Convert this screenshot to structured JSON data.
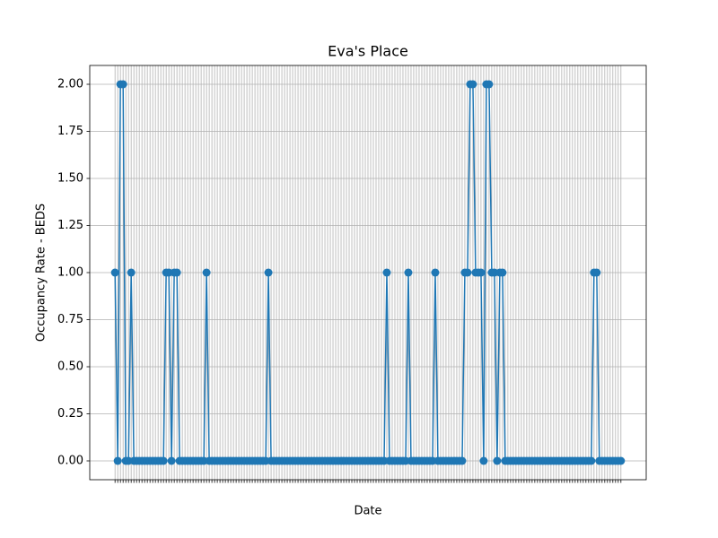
{
  "chart_data": {
    "type": "line",
    "title": "Eva's Place",
    "xlabel": "Date",
    "ylabel": "Occupancy Rate - BEDS",
    "categories": [
      null,
      null,
      null,
      null,
      null,
      null,
      null,
      null,
      null,
      null,
      null,
      null,
      null,
      null,
      null,
      null,
      null,
      null,
      null,
      null,
      null,
      null,
      null,
      null,
      null,
      null,
      null,
      null,
      null,
      null,
      null,
      null,
      null,
      null,
      null,
      null,
      null,
      null,
      null,
      null,
      null,
      null,
      null,
      null,
      null,
      null,
      null,
      null,
      null,
      null,
      null,
      null,
      null,
      null,
      null,
      null,
      null,
      null,
      null,
      null,
      null,
      null,
      null,
      null,
      null,
      null,
      null,
      null,
      null,
      null,
      null,
      null,
      null,
      null,
      null,
      null,
      null,
      null,
      null,
      null,
      null,
      null,
      null,
      null,
      null,
      null,
      null,
      null,
      null,
      null,
      null,
      null,
      null,
      null,
      null,
      null,
      null,
      null,
      null,
      null,
      null,
      null,
      null,
      null,
      null,
      null,
      null,
      null,
      null,
      null,
      null,
      null,
      null,
      null,
      null,
      null,
      null,
      null,
      null,
      null,
      null,
      null,
      null,
      null,
      null,
      null,
      null,
      null,
      null,
      null,
      null,
      null,
      null,
      null,
      null,
      null,
      null,
      null,
      null,
      null,
      null,
      null,
      null,
      null,
      null,
      null,
      null,
      null,
      null,
      null,
      null,
      null,
      null,
      null,
      null,
      null,
      null,
      null,
      null,
      null,
      null,
      null,
      null,
      null,
      null,
      null,
      null,
      null,
      null,
      null,
      null,
      null,
      null,
      null,
      null,
      null,
      null,
      null,
      null,
      null,
      null,
      null,
      null,
      null,
      null,
      null,
      null,
      null,
      null
    ],
    "series": [
      {
        "color": "#1f77b4",
        "values": [
          1,
          0,
          2,
          2,
          0,
          0,
          1,
          0,
          0,
          0,
          0,
          0,
          0,
          0,
          0,
          0,
          0,
          0,
          0,
          1,
          1,
          0,
          1,
          1,
          0,
          0,
          0,
          0,
          0,
          0,
          0,
          0,
          0,
          0,
          1,
          0,
          0,
          0,
          0,
          0,
          0,
          0,
          0,
          0,
          0,
          0,
          0,
          0,
          0,
          0,
          0,
          0,
          0,
          0,
          0,
          0,
          0,
          1,
          0,
          0,
          0,
          0,
          0,
          0,
          0,
          0,
          0,
          0,
          0,
          0,
          0,
          0,
          0,
          0,
          0,
          0,
          0,
          0,
          0,
          0,
          0,
          0,
          0,
          0,
          0,
          0,
          0,
          0,
          0,
          0,
          0,
          0,
          0,
          0,
          0,
          0,
          0,
          0,
          0,
          0,
          0,
          1,
          0,
          0,
          0,
          0,
          0,
          0,
          0,
          1,
          0,
          0,
          0,
          0,
          0,
          0,
          0,
          0,
          0,
          1,
          0,
          0,
          0,
          0,
          0,
          0,
          0,
          0,
          0,
          0,
          1,
          1,
          2,
          2,
          1,
          1,
          1,
          0,
          2,
          2,
          1,
          1,
          0,
          1,
          1,
          0,
          0,
          0,
          0,
          0,
          0,
          0,
          0,
          0,
          0,
          0,
          0,
          0,
          0,
          0,
          0,
          0,
          0,
          0,
          0,
          0,
          0,
          0,
          0,
          0,
          0,
          0,
          0,
          0,
          0,
          0,
          0,
          0,
          1,
          1,
          0,
          0,
          0,
          0,
          0,
          0,
          0,
          0,
          0
        ]
      }
    ],
    "ylim": [
      -0.1,
      2.1
    ],
    "yticks": [
      {
        "value": 0,
        "label": "0.00"
      },
      {
        "value": 0.25,
        "label": "0.25"
      },
      {
        "value": 0.5,
        "label": "0.50"
      },
      {
        "value": 0.75,
        "label": "0.75"
      },
      {
        "value": 1,
        "label": "1.00"
      },
      {
        "value": 1.25,
        "label": "1.25"
      },
      {
        "value": 1.5,
        "label": "1.50"
      },
      {
        "value": 1.75,
        "label": "1.75"
      },
      {
        "value": 2,
        "label": "2.00"
      }
    ],
    "grid": true
  }
}
